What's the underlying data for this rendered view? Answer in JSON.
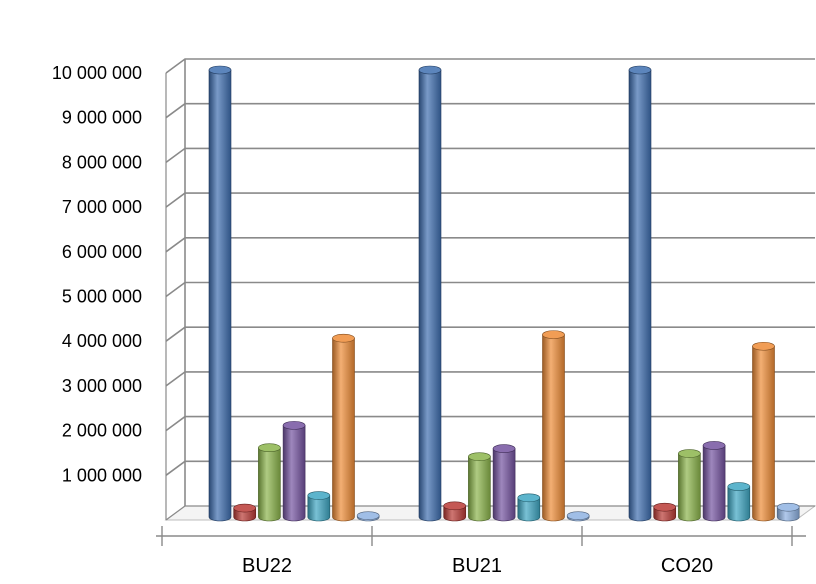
{
  "chart_data": {
    "type": "bar",
    "categories": [
      "BU22",
      "BU21",
      "CO20"
    ],
    "series": [
      {
        "color": "#3F6FB0",
        "values": [
          10000000,
          10000000,
          10000000
        ]
      },
      {
        "color": "#B93B36",
        "values": [
          200000,
          250000,
          220000
        ]
      },
      {
        "color": "#8CB54C",
        "values": [
          1550000,
          1350000,
          1420000
        ]
      },
      {
        "color": "#7453A0",
        "values": [
          2050000,
          1530000,
          1600000
        ]
      },
      {
        "color": "#3FA7C3",
        "values": [
          480000,
          430000,
          680000
        ]
      },
      {
        "color": "#EE8C37",
        "values": [
          4000000,
          4080000,
          3820000
        ]
      },
      {
        "color": "#8FB2E2",
        "values": [
          30000,
          30000,
          220000
        ]
      }
    ],
    "y_ticks": [
      "10 000 000",
      "9 000 000",
      "8 000 000",
      "7 000 000",
      "6 000 000",
      "5 000 000",
      "4 000 000",
      "3 000 000",
      "2 000 000",
      "1 000 000"
    ],
    "y_tick_values": [
      10000000,
      9000000,
      8000000,
      7000000,
      6000000,
      5000000,
      4000000,
      3000000,
      2000000,
      1000000
    ],
    "ylim": [
      0,
      10000000
    ],
    "title": "",
    "xlabel": "",
    "ylabel": "",
    "grid": true,
    "legend": "none",
    "style": "3d-cylinder"
  }
}
